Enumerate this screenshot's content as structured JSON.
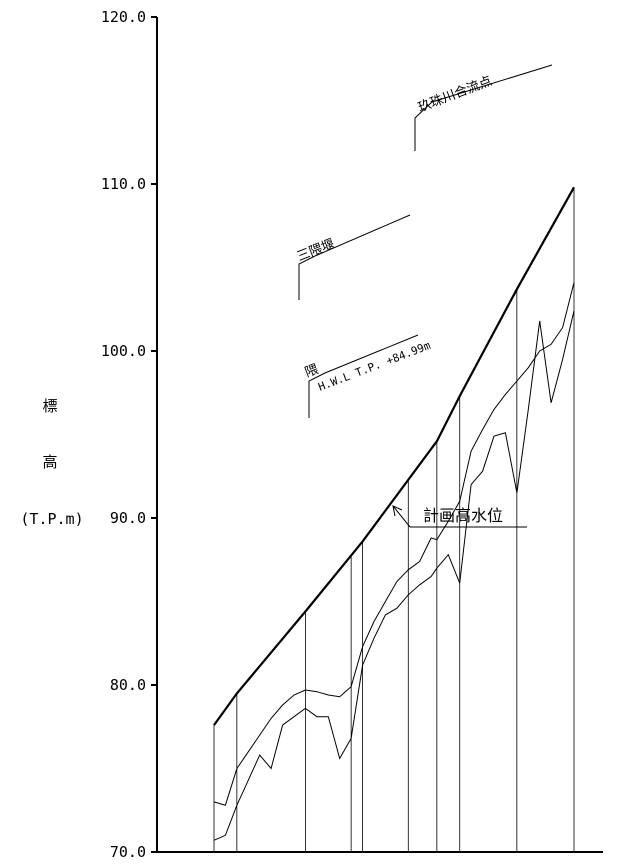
{
  "chart_data": {
    "type": "line",
    "ylabel": [
      "標",
      "高",
      "(T.P.m)"
    ],
    "ylim": [
      70,
      120
    ],
    "yticks": [
      "70.0",
      "80.0",
      "90.0",
      "100.0",
      "110.0",
      "120.0"
    ],
    "grid": false,
    "section_x": [
      0,
      4,
      16,
      24,
      26,
      34,
      39,
      43,
      53,
      63
    ],
    "series": [
      {
        "role": "planned-high-water-level",
        "x": [
          0,
          4,
          16,
          26,
          39,
          43,
          53,
          63
        ],
        "values": [
          77.6,
          79.5,
          84.4,
          88.6,
          94.6,
          97.3,
          103.7,
          109.8
        ]
      },
      {
        "role": "upper-profile",
        "x": [
          0,
          2,
          4,
          6,
          8,
          10,
          12,
          14,
          16,
          18,
          20,
          22,
          24,
          26,
          28,
          30,
          32,
          34,
          36,
          38,
          39,
          41,
          43,
          45,
          47,
          49,
          51,
          53,
          55,
          57,
          59,
          61,
          63
        ],
        "values": [
          73.0,
          72.8,
          75.0,
          76.0,
          77.0,
          78.0,
          78.8,
          79.4,
          79.7,
          79.6,
          79.4,
          79.3,
          79.9,
          82.3,
          83.8,
          85.0,
          86.2,
          86.9,
          87.4,
          88.8,
          88.7,
          89.8,
          91.0,
          94.0,
          95.3,
          96.5,
          97.4,
          98.2,
          99.0,
          100.0,
          100.4,
          101.4,
          104.1
        ]
      },
      {
        "role": "lower-profile",
        "x": [
          0,
          2,
          4,
          6,
          8,
          10,
          12,
          14,
          16,
          18,
          20,
          22,
          24,
          26,
          28,
          30,
          32,
          34,
          36,
          38,
          39,
          41,
          43,
          45,
          47,
          49,
          51,
          53,
          55,
          57,
          59,
          61,
          63
        ],
        "values": [
          70.7,
          71.0,
          72.8,
          74.3,
          75.8,
          75.0,
          77.6,
          78.1,
          78.6,
          78.1,
          78.1,
          75.6,
          76.8,
          81.2,
          82.8,
          84.2,
          84.6,
          85.4,
          86.0,
          86.5,
          87.0,
          87.8,
          86.1,
          92.0,
          92.8,
          94.9,
          95.1,
          91.5,
          96.5,
          101.8,
          96.9,
          99.5,
          102.4
        ]
      }
    ],
    "annotations": [
      {
        "name": "kusu-confluence",
        "text": "玖珠川合流点"
      },
      {
        "name": "mikuma-weir",
        "text": "三隈堰"
      },
      {
        "name": "kuma-hwl",
        "text": "隈",
        "subtext": "H.W.L T.P. +84.99m"
      }
    ],
    "legend": {
      "text": "計画高水位",
      "placement": "center-right"
    }
  }
}
